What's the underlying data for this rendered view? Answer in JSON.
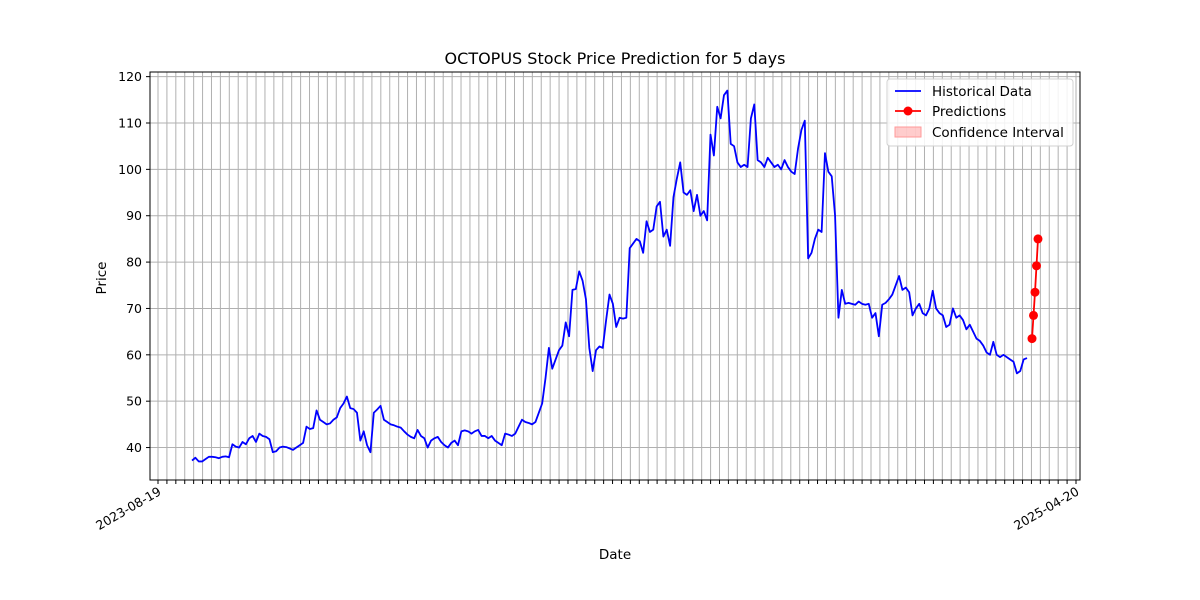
{
  "chart_data": {
    "type": "line",
    "title": "OCTOPUS Stock Price Prediction for 5 days",
    "xlabel": "Date",
    "ylabel": "Price",
    "ylim": [
      33,
      121
    ],
    "yticks": [
      40,
      50,
      60,
      70,
      80,
      90,
      100,
      110,
      120
    ],
    "x_tick_note": "dense, overlapping, rotated date tick labels along x-axis; legible extremes",
    "x_tick_labels_visible": [
      "2023-08-19",
      "2025-04-20"
    ],
    "grid": true,
    "legend_position": "top-right",
    "colors": {
      "historical": "#0000ff",
      "predictions": "#ff0000",
      "confidence": "#ff9999",
      "grid": "#b0b0b0"
    },
    "legend": [
      "Historical Data",
      "Predictions",
      "Confidence Interval"
    ],
    "series": [
      {
        "name": "Historical Data",
        "x_range": [
          "2023-09-15",
          "2025-04-14"
        ],
        "values": [
          37.2,
          37.8,
          37.0,
          37.0,
          37.5,
          38.0,
          38.0,
          37.9,
          37.7,
          38.0,
          38.1,
          37.9,
          40.7,
          40.2,
          40.0,
          41.2,
          40.7,
          42.0,
          42.5,
          41.2,
          43.0,
          42.5,
          42.3,
          41.8,
          39.0,
          39.2,
          40.0,
          40.2,
          40.1,
          39.8,
          39.5,
          40.0,
          40.5,
          41.0,
          44.5,
          44.0,
          44.2,
          48.0,
          46.0,
          45.5,
          45.0,
          45.2,
          46.0,
          46.5,
          48.5,
          49.5,
          51.0,
          48.5,
          48.3,
          47.5,
          41.5,
          43.5,
          40.5,
          39.0,
          47.5,
          48.2,
          49.0,
          46.0,
          45.5,
          45.0,
          44.8,
          44.5,
          44.3,
          43.5,
          42.8,
          42.3,
          42.0,
          43.8,
          42.5,
          42.0,
          40.0,
          41.5,
          42.0,
          42.3,
          41.2,
          40.5,
          40.0,
          41.0,
          41.5,
          40.5,
          43.5,
          43.7,
          43.5,
          43.0,
          43.5,
          43.8,
          42.5,
          42.5,
          42.0,
          42.5,
          41.5,
          41.0,
          40.5,
          43.0,
          42.8,
          42.5,
          43.0,
          44.5,
          46.0,
          45.5,
          45.3,
          45.0,
          45.5,
          47.5,
          49.5,
          55.0,
          61.5,
          57.0,
          59.0,
          61.0,
          62.0,
          67.0,
          64.0,
          74.0,
          74.2,
          78.0,
          76.0,
          72.0,
          61.5,
          56.5,
          61.0,
          61.8,
          61.5,
          67.5,
          73.0,
          71.0,
          66.0,
          68.0,
          67.8,
          68.0,
          83.0,
          84.0,
          85.0,
          84.5,
          82.0,
          88.8,
          86.5,
          87.0,
          92.0,
          93.0,
          85.5,
          87.0,
          83.5,
          94.0,
          98.0,
          101.5,
          95.0,
          94.5,
          95.5,
          91.0,
          94.5,
          90.0,
          91.0,
          89.0,
          107.5,
          103.0,
          113.5,
          111.0,
          116.0,
          117.0,
          105.5,
          105.0,
          101.5,
          100.5,
          101.0,
          100.5,
          111.0,
          114.0,
          102.0,
          101.5,
          100.5,
          102.5,
          101.5,
          100.5,
          101.0,
          100.0,
          102.0,
          100.5,
          99.5,
          99.0,
          104.5,
          108.5,
          110.5,
          80.8,
          82.0,
          85.0,
          87.0,
          86.5,
          103.5,
          99.5,
          98.5,
          90.0,
          68.0,
          74.0,
          71.0,
          71.2,
          71.0,
          70.8,
          71.5,
          71.0,
          70.8,
          71.0,
          68.0,
          69.0,
          64.0,
          70.8,
          71.2,
          72.0,
          73.0,
          75.0,
          77.0,
          74.0,
          74.5,
          73.5,
          68.5,
          70.0,
          71.0,
          69.0,
          68.5,
          70.0,
          73.8,
          70.0,
          69.0,
          68.5,
          66.0,
          66.5,
          70.0,
          68.0,
          68.5,
          67.5,
          65.5,
          66.5,
          65.0,
          63.5,
          63.0,
          62.0,
          60.5,
          60.0,
          62.8,
          60.0,
          59.5,
          60.0,
          59.5,
          59.0,
          58.5,
          56.0,
          56.5,
          59.0,
          59.3
        ]
      },
      {
        "name": "Predictions",
        "x_range": [
          "2025-04-15",
          "2025-04-19"
        ],
        "values": [
          63.5,
          68.5,
          73.5,
          79.2,
          85.0
        ]
      }
    ]
  }
}
